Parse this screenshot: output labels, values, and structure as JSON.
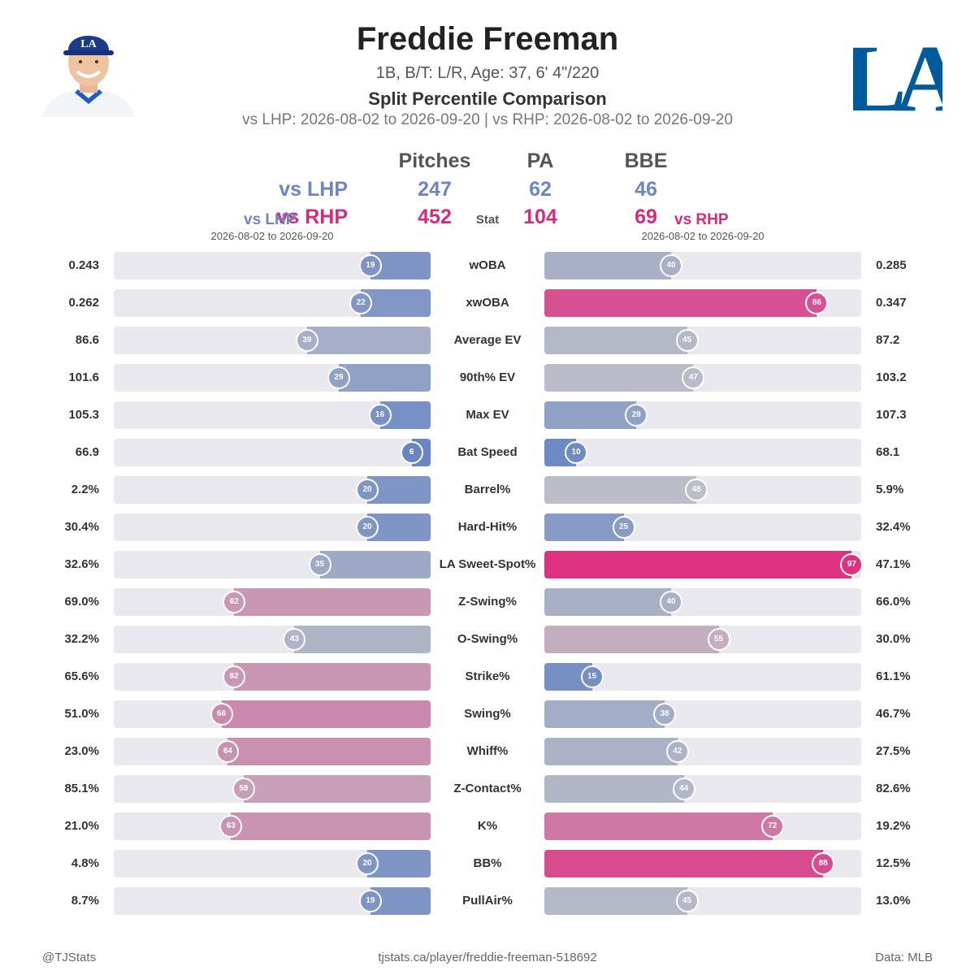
{
  "header": {
    "title": "Freddie Freeman",
    "bio": "1B, B/T: L/R, Age: 37, 6' 4\"/220",
    "subtitle": "Split Percentile Comparison",
    "dates": "vs LHP: 2026-08-02 to 2026-09-20  |  vs RHP: 2026-08-02 to 2026-09-20",
    "logo_text": "LA"
  },
  "summary": {
    "headers": [
      "Pitches",
      "PA",
      "BBE"
    ],
    "stat_label": "Stat",
    "lhp": {
      "label": "vs LHP",
      "pitches": "247",
      "pa": "62",
      "bbe": "46"
    },
    "rhp": {
      "label": "vs RHP",
      "pitches": "452",
      "pa": "104",
      "bbe": "69"
    },
    "left_title": "vs LHP",
    "left_dates": "2026-08-02 to 2026-09-20",
    "right_title": "vs RHP",
    "right_dates": "2026-08-02 to 2026-09-20"
  },
  "colors": {
    "lhp": "#6c86c1",
    "rhp": "#d62a80",
    "track": "#e8e8ee"
  },
  "chart_data": {
    "type": "bar",
    "categories": [
      "wOBA",
      "xwOBA",
      "Average EV",
      "90th% EV",
      "Max EV",
      "Bat Speed",
      "Barrel%",
      "Hard-Hit%",
      "LA Sweet-Spot%",
      "Z-Swing%",
      "O-Swing%",
      "Strike%",
      "Swing%",
      "Whiff%",
      "Z-Contact%",
      "K%",
      "BB%",
      "PullAir%"
    ],
    "series": [
      {
        "name": "vs LHP",
        "percentiles": [
          19,
          22,
          39,
          29,
          16,
          6,
          20,
          20,
          35,
          62,
          43,
          62,
          66,
          64,
          59,
          63,
          20,
          19
        ],
        "values": [
          "0.243",
          "0.262",
          "86.6",
          "101.6",
          "105.3",
          "66.9",
          "2.2%",
          "30.4%",
          "32.6%",
          "69.0%",
          "32.2%",
          "65.6%",
          "51.0%",
          "23.0%",
          "85.1%",
          "21.0%",
          "4.8%",
          "8.7%"
        ]
      },
      {
        "name": "vs RHP",
        "percentiles": [
          40,
          86,
          45,
          47,
          29,
          10,
          48,
          25,
          97,
          40,
          55,
          15,
          38,
          42,
          44,
          72,
          88,
          45
        ],
        "values": [
          "0.285",
          "0.347",
          "87.2",
          "103.2",
          "107.3",
          "68.1",
          "5.9%",
          "32.4%",
          "47.1%",
          "66.0%",
          "30.0%",
          "61.1%",
          "46.7%",
          "27.5%",
          "82.6%",
          "19.2%",
          "12.5%",
          "13.0%"
        ]
      }
    ],
    "ylim": [
      0,
      100
    ]
  },
  "footer": {
    "left": "@TJStats",
    "center": "tjstats.ca/player/freddie-freeman-518692",
    "right": "Data: MLB"
  }
}
